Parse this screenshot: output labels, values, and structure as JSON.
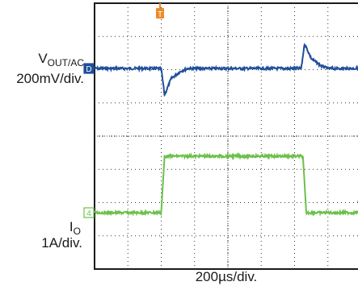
{
  "chart_data": {
    "type": "line",
    "title": "",
    "xlabel": "200µs/div.",
    "grid": true,
    "trigger_marker": "T",
    "x_unit_per_div_us": 200,
    "channels": [
      {
        "id": "vout",
        "name_main": "V",
        "name_sub": "OUT/AC",
        "scale": "200mV/div.",
        "marker": "D",
        "color": "#1f4e9c",
        "description_points_us_mV": [
          [
            0,
            0
          ],
          [
            400,
            0
          ],
          [
            420,
            -160
          ],
          [
            460,
            -60
          ],
          [
            520,
            -15
          ],
          [
            560,
            0
          ],
          [
            1240,
            0
          ],
          [
            1260,
            150
          ],
          [
            1300,
            60
          ],
          [
            1360,
            15
          ],
          [
            1400,
            0
          ],
          [
            1680,
            0
          ]
        ]
      },
      {
        "id": "io",
        "name_main": "I",
        "name_sub": "O",
        "scale": "1A/div.",
        "marker": "4",
        "color": "#6cc04a",
        "description_points_us_A": [
          [
            0,
            0
          ],
          [
            400,
            0
          ],
          [
            420,
            1.7
          ],
          [
            1250,
            1.7
          ],
          [
            1270,
            0
          ],
          [
            1680,
            0
          ]
        ]
      }
    ]
  }
}
